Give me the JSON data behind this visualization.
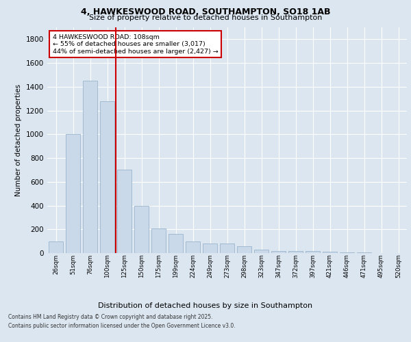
{
  "title1": "4, HAWKESWOOD ROAD, SOUTHAMPTON, SO18 1AB",
  "title2": "Size of property relative to detached houses in Southampton",
  "xlabel": "Distribution of detached houses by size in Southampton",
  "ylabel": "Number of detached properties",
  "categories": [
    "26sqm",
    "51sqm",
    "76sqm",
    "100sqm",
    "125sqm",
    "150sqm",
    "175sqm",
    "199sqm",
    "224sqm",
    "249sqm",
    "273sqm",
    "298sqm",
    "323sqm",
    "347sqm",
    "372sqm",
    "397sqm",
    "421sqm",
    "446sqm",
    "471sqm",
    "495sqm",
    "520sqm"
  ],
  "values": [
    100,
    1000,
    1450,
    1280,
    700,
    400,
    210,
    160,
    100,
    80,
    80,
    55,
    30,
    20,
    20,
    15,
    10,
    5,
    5,
    2,
    2
  ],
  "bar_color": "#cad9e9",
  "bar_edge_color": "#9ab5cc",
  "vline_color": "#cc0000",
  "vline_pos": 3.5,
  "annotation_text": "4 HAWKESWOOD ROAD: 108sqm\n← 55% of detached houses are smaller (3,017)\n44% of semi-detached houses are larger (2,427) →",
  "annotation_box_color": "#ffffff",
  "annotation_edge_color": "#cc0000",
  "ylim": [
    0,
    1900
  ],
  "yticks": [
    0,
    200,
    400,
    600,
    800,
    1000,
    1200,
    1400,
    1600,
    1800
  ],
  "background_color": "#dce6f0",
  "grid_color": "#ffffff",
  "footer1": "Contains HM Land Registry data © Crown copyright and database right 2025.",
  "footer2": "Contains public sector information licensed under the Open Government Licence v3.0."
}
